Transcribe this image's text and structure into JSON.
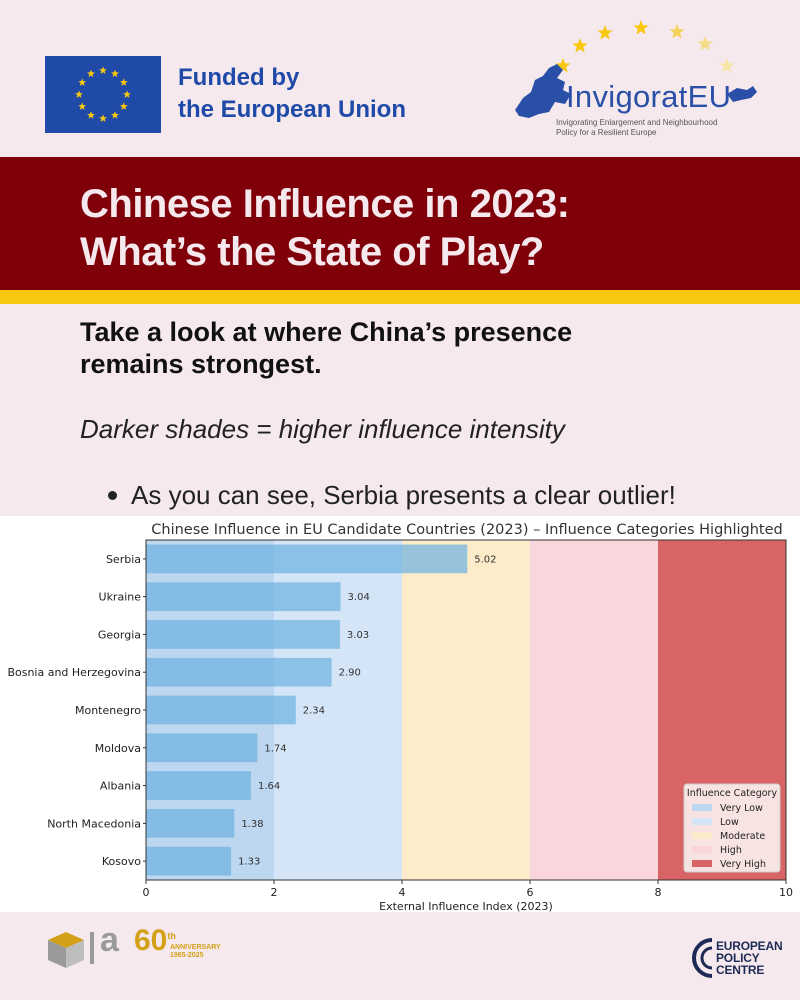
{
  "header": {
    "funded_line1": "Funded by",
    "funded_line2": "the European Union",
    "partner_name": "InvigoratEU",
    "partner_tagline_1": "Invigorating Enlargement and Neighbourhood",
    "partner_tagline_2": "Policy for a Resilient Europe",
    "eu_blue": "#1f4aa8",
    "star_color": "#f8c70f"
  },
  "hero": {
    "title_line1": "Chinese Influence in 2023:",
    "title_line2": "What’s the State of Play?",
    "band_color": "#800009",
    "stripe_color": "#f8c70f"
  },
  "intro": {
    "subtitle_line1": "Take a look at where China’s presence",
    "subtitle_line2": "remains strongest.",
    "shade_note": "Darker shades = higher influence intensity",
    "bullet": "As you can see, Serbia presents a clear outlier!"
  },
  "chart_data": {
    "type": "bar",
    "orientation": "horizontal",
    "title": "Chinese Influence in EU Candidate Countries (2023) – Influence Categories Highlighted",
    "xlabel": "External Influence Index (2023)",
    "ylabel": "",
    "xlim": [
      0,
      10
    ],
    "xticks": [
      0,
      2,
      4,
      6,
      8,
      10
    ],
    "categories": [
      "Serbia",
      "Ukraine",
      "Georgia",
      "Bosnia and Herzegovina",
      "Montenegro",
      "Moldova",
      "Albania",
      "North Macedonia",
      "Kosovo"
    ],
    "values": [
      5.02,
      3.04,
      3.03,
      2.9,
      2.34,
      1.74,
      1.64,
      1.38,
      1.33
    ],
    "value_labels": [
      "5.02",
      "3.04",
      "3.03",
      "2.90",
      "2.34",
      "1.74",
      "1.64",
      "1.38",
      "1.33"
    ],
    "bar_color": "#6fb2e0",
    "bands": [
      {
        "name": "Very Low",
        "from": 0,
        "to": 2,
        "color": "#bcd7ef"
      },
      {
        "name": "Low",
        "from": 2,
        "to": 4,
        "color": "#d3e5f7"
      },
      {
        "name": "Moderate",
        "from": 4,
        "to": 6,
        "color": "#fcecc9"
      },
      {
        "name": "High",
        "from": 6,
        "to": 8,
        "color": "#f9d6dc"
      },
      {
        "name": "Very High",
        "from": 8,
        "to": 10,
        "color": "#d96466"
      }
    ],
    "legend_title": "Influence Category",
    "legend_position": "bottom-right",
    "grid": false
  },
  "footer": {
    "left_logo_letter": "a",
    "anniversary_number": "60",
    "anniversary_sup": "th",
    "anniversary_line1": "ANNIVERSARY",
    "anniversary_line2": "1965-2025",
    "epc_line1": "EUROPEAN",
    "epc_line2": "POLICY",
    "epc_line3": "CENTRE"
  }
}
